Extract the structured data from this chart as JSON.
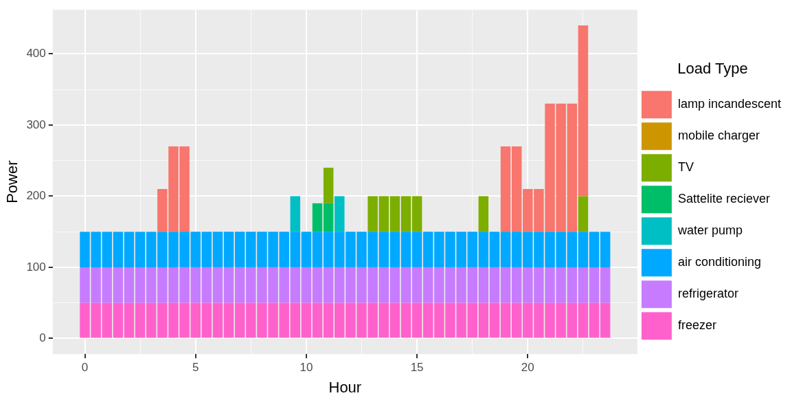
{
  "chart_data": {
    "type": "bar",
    "xlabel": "Hour",
    "ylabel": "Power",
    "legend_title": "Load Type",
    "legend": "right",
    "grid": true,
    "stacked": true,
    "x": [
      0,
      0.5,
      1,
      1.5,
      2,
      2.5,
      3,
      3.5,
      4,
      4.5,
      5,
      5.5,
      6,
      6.5,
      7,
      7.5,
      8,
      8.5,
      9,
      9.5,
      10,
      10.5,
      11,
      11.5,
      12,
      12.5,
      13,
      13.5,
      14,
      14.5,
      15,
      15.5,
      16,
      16.5,
      17,
      17.5,
      18,
      18.5,
      19,
      19.5,
      20,
      20.5,
      21,
      21.5,
      22,
      22.5,
      23,
      23.5
    ],
    "xlim": [
      -1.45,
      24.95
    ],
    "xticks": [
      0,
      {
        "value": 2.5,
        "label": null
      },
      5,
      {
        "value": 7.5,
        "label": null
      },
      10,
      {
        "value": 12.5,
        "label": null
      },
      15,
      {
        "value": 17.5,
        "label": null
      },
      20,
      {
        "value": 22.5,
        "label": null
      }
    ],
    "ylim": [
      -22,
      462
    ],
    "yticks": [
      0,
      {
        "value": 50,
        "label": null
      },
      100,
      {
        "value": 150,
        "label": null
      },
      200,
      {
        "value": 250,
        "label": null
      },
      300,
      {
        "value": 350,
        "label": null
      },
      400
    ],
    "series": [
      {
        "name": "freezer",
        "color": "#ff61cc",
        "values": [
          50,
          50,
          50,
          50,
          50,
          50,
          50,
          50,
          50,
          50,
          50,
          50,
          50,
          50,
          50,
          50,
          50,
          50,
          50,
          50,
          50,
          50,
          50,
          50,
          50,
          50,
          50,
          50,
          50,
          50,
          50,
          50,
          50,
          50,
          50,
          50,
          50,
          50,
          50,
          50,
          50,
          50,
          50,
          50,
          50,
          50,
          50,
          50
        ]
      },
      {
        "name": "refrigerator",
        "color": "#c77cff",
        "values": [
          50,
          50,
          50,
          50,
          50,
          50,
          50,
          50,
          50,
          50,
          50,
          50,
          50,
          50,
          50,
          50,
          50,
          50,
          50,
          50,
          50,
          50,
          50,
          50,
          50,
          50,
          50,
          50,
          50,
          50,
          50,
          50,
          50,
          50,
          50,
          50,
          50,
          50,
          50,
          50,
          50,
          50,
          50,
          50,
          50,
          50,
          50,
          50
        ]
      },
      {
        "name": "air conditioning",
        "color": "#00a9ff",
        "values": [
          50,
          50,
          50,
          50,
          50,
          50,
          50,
          50,
          50,
          50,
          50,
          50,
          50,
          50,
          50,
          50,
          50,
          50,
          50,
          50,
          50,
          50,
          50,
          50,
          50,
          50,
          50,
          50,
          50,
          50,
          50,
          50,
          50,
          50,
          50,
          50,
          50,
          50,
          50,
          50,
          50,
          50,
          50,
          50,
          50,
          50,
          50,
          50
        ]
      },
      {
        "name": "water pump",
        "color": "#00bfc4",
        "values": [
          null,
          null,
          null,
          null,
          null,
          null,
          null,
          null,
          null,
          null,
          null,
          null,
          null,
          null,
          null,
          null,
          null,
          null,
          null,
          50,
          null,
          null,
          null,
          50,
          null,
          null,
          null,
          null,
          null,
          null,
          null,
          null,
          null,
          null,
          null,
          null,
          null,
          null,
          null,
          null,
          null,
          null,
          null,
          null,
          null,
          null,
          null,
          null
        ]
      },
      {
        "name": "Sattelite reciever",
        "color": "#00be67",
        "values": [
          null,
          null,
          null,
          null,
          null,
          null,
          null,
          null,
          null,
          null,
          null,
          null,
          null,
          null,
          null,
          null,
          null,
          null,
          null,
          null,
          null,
          40,
          40,
          null,
          null,
          null,
          null,
          null,
          null,
          null,
          null,
          null,
          null,
          null,
          null,
          null,
          null,
          null,
          null,
          null,
          null,
          null,
          null,
          null,
          null,
          null,
          null,
          null
        ]
      },
      {
        "name": "TV",
        "color": "#7cae00",
        "values": [
          null,
          null,
          null,
          null,
          null,
          null,
          null,
          null,
          null,
          null,
          null,
          null,
          null,
          null,
          null,
          null,
          null,
          null,
          null,
          null,
          null,
          null,
          50,
          null,
          null,
          null,
          50,
          50,
          50,
          50,
          50,
          null,
          null,
          null,
          null,
          null,
          50,
          null,
          null,
          null,
          null,
          null,
          null,
          null,
          null,
          50,
          null,
          null
        ]
      },
      {
        "name": "mobile charger",
        "color": "#cd9600",
        "values": [
          null,
          null,
          null,
          null,
          null,
          null,
          null,
          null,
          null,
          null,
          null,
          null,
          null,
          null,
          null,
          null,
          null,
          null,
          null,
          null,
          null,
          null,
          null,
          null,
          null,
          null,
          null,
          null,
          null,
          null,
          null,
          null,
          null,
          null,
          null,
          null,
          null,
          null,
          null,
          null,
          null,
          null,
          null,
          null,
          null,
          null,
          null,
          null
        ]
      },
      {
        "name": "lamp incandescent",
        "color": "#f8766d",
        "values": [
          null,
          null,
          null,
          null,
          null,
          null,
          null,
          60,
          120,
          120,
          null,
          null,
          null,
          null,
          null,
          null,
          null,
          null,
          null,
          null,
          null,
          null,
          null,
          null,
          null,
          null,
          null,
          null,
          null,
          null,
          null,
          null,
          null,
          null,
          null,
          null,
          null,
          null,
          120,
          120,
          60,
          60,
          180,
          180,
          180,
          240,
          null,
          null
        ]
      }
    ]
  }
}
